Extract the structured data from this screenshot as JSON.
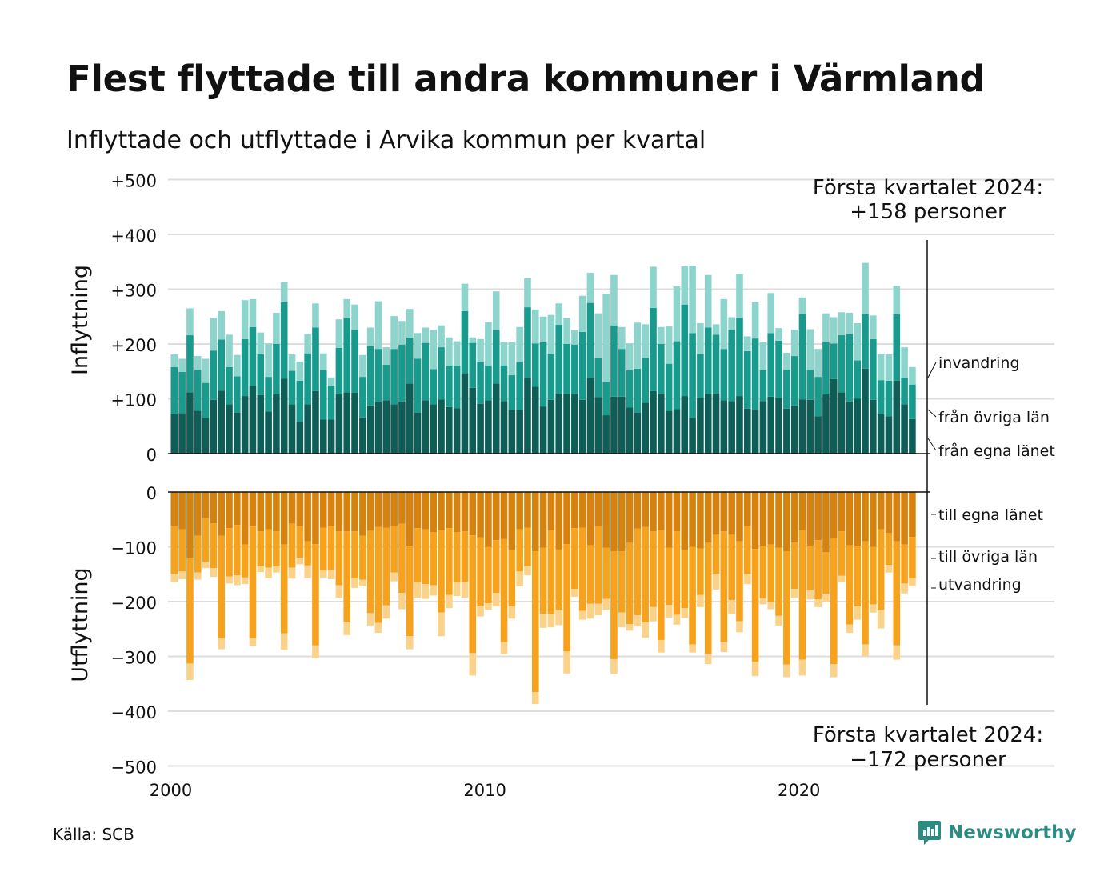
{
  "title": "Flest flyttade till andra kommuner i Värmland",
  "subtitle": "Inflyttade och utflyttade i Arvika kommun per kvartal",
  "source": "Källa: SCB",
  "brand": "Newsworthy",
  "annotations": {
    "top_line1": "Första kvartalet 2024:",
    "top_line2": "+158 personer",
    "bottom_line1": "Första kvartalet 2024:",
    "bottom_line2": "−172 personer"
  },
  "colors": {
    "in_egna": "#0e5e57",
    "in_ovriga": "#189a8c",
    "in_invandring": "#8dd5cc",
    "ut_egna": "#d6820f",
    "ut_ovriga": "#f7a21c",
    "ut_utvandring": "#fbd28a",
    "grid": "#dddddd",
    "brand": "#2e8b82"
  },
  "chart_data": {
    "type": "bar",
    "stacked": true,
    "x_start": "2000 Q1",
    "x_end": "2024 Q1",
    "x_ticks": [
      "2000",
      "2010",
      "2020"
    ],
    "panels": [
      {
        "ylabel": "Inflyttning",
        "yticks": [
          "+500",
          "+400",
          "+300",
          "+200",
          "+100",
          "0"
        ],
        "ylim": [
          0,
          500
        ],
        "series": [
          {
            "name": "från egna länet",
            "values": [
              72,
              74,
              112,
              78,
              65,
              98,
              115,
              90,
              75,
              105,
              124,
              107,
              77,
              108,
              137,
              90,
              58,
              90,
              114,
              62,
              62,
              108,
              112,
              111,
              66,
              88,
              94,
              97,
              90,
              95,
              128,
              75,
              97,
              90,
              99,
              85,
              83,
              147,
              120,
              91,
              97,
              128,
              96,
              79,
              80,
              138,
              122,
              86,
              98,
              110,
              110,
              109,
              98,
              138,
              103,
              70,
              104,
              104,
              84,
              75,
              93,
              114,
              109,
              78,
              81,
              105,
              65,
              101,
              110,
              110,
              97,
              96,
              105,
              82,
              80,
              96,
              104,
              102,
              82,
              88,
              99,
              98,
              68,
              108,
              136,
              112,
              95,
              100,
              155,
              98,
              72,
              68,
              133,
              90,
              63
            ]
          },
          {
            "name": "från övriga län",
            "values": [
              86,
              75,
              104,
              75,
              64,
              90,
              93,
              68,
              66,
              104,
              107,
              74,
              63,
              92,
              139,
              61,
              75,
              93,
              116,
              90,
              62,
              85,
              135,
              115,
              74,
              108,
              97,
              65,
              101,
              104,
              84,
              98,
              105,
              64,
              95,
              76,
              77,
              113,
              82,
              76,
              64,
              97,
              65,
              64,
              87,
              129,
              79,
              117,
              83,
              125,
              90,
              90,
              124,
              137,
              71,
              61,
              130,
              87,
              68,
              80,
              82,
              152,
              91,
              86,
              124,
              167,
              155,
              81,
              120,
              107,
              94,
              130,
              143,
              105,
              130,
              56,
              116,
              104,
              71,
              90,
              156,
              55,
              72,
              96,
              65,
              104,
              123,
              70,
              100,
              111,
              62,
              65,
              121,
              49,
              63
            ]
          },
          {
            "name": "invandring",
            "values": [
              23,
              24,
              49,
              25,
              44,
              60,
              52,
              59,
              39,
              71,
              51,
              40,
              61,
              57,
              37,
              30,
              35,
              35,
              44,
              31,
              15,
              52,
              35,
              46,
              40,
              34,
              87,
              32,
              60,
              43,
              52,
              47,
              28,
              72,
              40,
              51,
              45,
              50,
              10,
              42,
              79,
              71,
              42,
              60,
              64,
              53,
              62,
              47,
              72,
              39,
              47,
              26,
              66,
              55,
              82,
              161,
              92,
              40,
              49,
              84,
              61,
              75,
              31,
              68,
              100,
              70,
              123,
              56,
              96,
              19,
              91,
              23,
              80,
              27,
              66,
              51,
              73,
              23,
              31,
              48,
              30,
              74,
              51,
              52,
              48,
              42,
              39,
              68,
              93,
              43,
              48,
              48,
              52,
              55,
              32
            ]
          }
        ]
      },
      {
        "ylabel": "Utflyttning",
        "yticks": [
          "0",
          "−100",
          "−200",
          "−300",
          "−400",
          "−500"
        ],
        "ylim": [
          -500,
          0
        ],
        "series": [
          {
            "name": "till egna länet",
            "values": [
              -62,
              -68,
              -120,
              -80,
              -48,
              -57,
              -80,
              -66,
              -60,
              -96,
              -63,
              -72,
              -68,
              -72,
              -96,
              -58,
              -62,
              -90,
              -95,
              -65,
              -62,
              -72,
              -72,
              -72,
              -80,
              -71,
              -64,
              -65,
              -62,
              -58,
              -98,
              -66,
              -68,
              -73,
              -70,
              -66,
              -73,
              -72,
              -79,
              -83,
              -100,
              -88,
              -86,
              -106,
              -68,
              -65,
              -108,
              -102,
              -70,
              -105,
              -95,
              -66,
              -65,
              -97,
              -62,
              -102,
              -108,
              -108,
              -93,
              -67,
              -64,
              -72,
              -70,
              -102,
              -72,
              -106,
              -100,
              -103,
              -93,
              -78,
              -72,
              -78,
              -90,
              -62,
              -104,
              -98,
              -96,
              -102,
              -108,
              -92,
              -70,
              -98,
              -88,
              -110,
              -84,
              -72,
              -97,
              -98,
              -90,
              -100,
              -68,
              -75,
              -90,
              -96,
              -82
            ]
          },
          {
            "name": "till övriga län",
            "values": [
              -88,
              -77,
              -193,
              -67,
              -80,
              -82,
              -187,
              -88,
              -92,
              -60,
              -204,
              -63,
              -70,
              -64,
              -162,
              -80,
              -58,
              -44,
              -185,
              -78,
              -80,
              -98,
              -165,
              -86,
              -80,
              -150,
              -175,
              -142,
              -85,
              -126,
              -165,
              -99,
              -100,
              -97,
              -150,
              -122,
              -92,
              -92,
              -215,
              -126,
              -103,
              -96,
              -188,
              -103,
              -77,
              -71,
              -257,
              -120,
              -153,
              -110,
              -196,
              -111,
              -152,
              -107,
              -142,
              -93,
              -197,
              -112,
              -148,
              -158,
              -174,
              -138,
              -200,
              -104,
              -152,
              -106,
              -178,
              -85,
              -202,
              -71,
              -202,
              -119,
              -146,
              -88,
              -206,
              -96,
              -104,
              -124,
              -207,
              -85,
              -236,
              -81,
              -108,
              -76,
              -230,
              -81,
              -145,
              -111,
              -188,
              -105,
              -147,
              -58,
              -190,
              -71,
              -76
            ]
          },
          {
            "name": "utvandring",
            "values": [
              -15,
              -14,
              -30,
              -13,
              -11,
              -16,
              -20,
              -13,
              -18,
              -12,
              -14,
              -11,
              -19,
              -11,
              -30,
              -20,
              -12,
              -23,
              -23,
              -13,
              -17,
              -23,
              -24,
              -17,
              -12,
              -23,
              -18,
              -24,
              -16,
              -30,
              -24,
              -28,
              -27,
              -19,
              -43,
              -24,
              -25,
              -29,
              -41,
              -18,
              -12,
              -25,
              -22,
              -22,
              -27,
              -16,
              -22,
              -26,
              -24,
              -28,
              -40,
              -14,
              -16,
              -27,
              -21,
              -20,
              -27,
              -27,
              -12,
              -20,
              -28,
              -26,
              -23,
              -23,
              -18,
              -18,
              -15,
              -22,
              -19,
              -29,
              -18,
              -26,
              -20,
              -18,
              -26,
              -11,
              -14,
              -18,
              -23,
              -16,
              -29,
              -17,
              -14,
              -15,
              -24,
              -12,
              -15,
              -24,
              -22,
              -15,
              -34,
              -14,
              -26,
              -18,
              -14
            ]
          }
        ]
      }
    ],
    "legend_in": [
      "invandring",
      "från övriga län",
      "från egna länet"
    ],
    "legend_out": [
      "till egna länet",
      "till övriga län",
      "utvandring"
    ]
  }
}
